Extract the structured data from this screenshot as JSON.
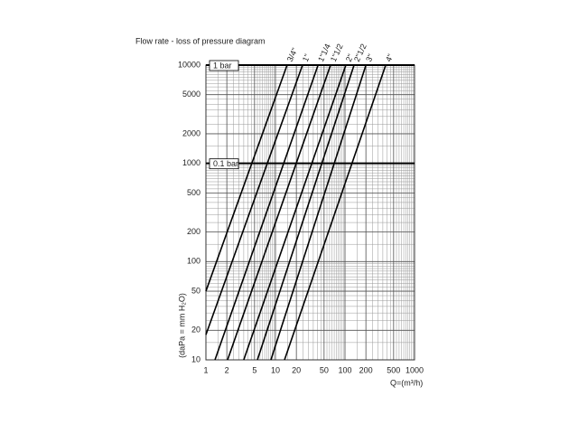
{
  "chart_data": {
    "type": "line",
    "title": "Flow rate - loss of pressure diagram",
    "x_label": "Q=(m³/h)",
    "y_label": "(daPa = mm H₂O)",
    "log_x": true,
    "log_y": true,
    "grid": true,
    "xlim": [
      1,
      1000
    ],
    "ylim": [
      10,
      10000
    ],
    "xticks": [
      1,
      2,
      5,
      10,
      20,
      50,
      100,
      200,
      500,
      1000
    ],
    "yticks": [
      10,
      20,
      50,
      100,
      200,
      500,
      1000,
      2000,
      5000,
      10000
    ],
    "reference_lines": [
      {
        "value": 10000,
        "label": "1 bar"
      },
      {
        "value": 1000,
        "label": "0.1 bar"
      }
    ],
    "series": [
      {
        "name": "3/4\"",
        "color": "#000000",
        "x": [
          1,
          14.7
        ],
        "values": [
          50,
          10000
        ]
      },
      {
        "name": "1\"",
        "color": "#000000",
        "x": [
          1,
          24.5
        ],
        "values": [
          18,
          10000
        ]
      },
      {
        "name": "1\"1/4",
        "color": "#000000",
        "x": [
          1.35,
          41
        ],
        "values": [
          10,
          10000
        ]
      },
      {
        "name": "1\"1/2",
        "color": "#000000",
        "x": [
          2.05,
          62
        ],
        "values": [
          10,
          10000
        ]
      },
      {
        "name": "2\"",
        "color": "#000000",
        "x": [
          3.5,
          103
        ],
        "values": [
          10,
          10000
        ]
      },
      {
        "name": "2\"1/2",
        "color": "#000000",
        "x": [
          5.5,
          135
        ],
        "values": [
          10,
          10000
        ]
      },
      {
        "name": "3\"",
        "color": "#000000",
        "x": [
          8.6,
          200
        ],
        "values": [
          10,
          10000
        ]
      },
      {
        "name": "4\"",
        "color": "#000000",
        "x": [
          13.5,
          385
        ],
        "values": [
          10,
          10000
        ]
      }
    ]
  }
}
